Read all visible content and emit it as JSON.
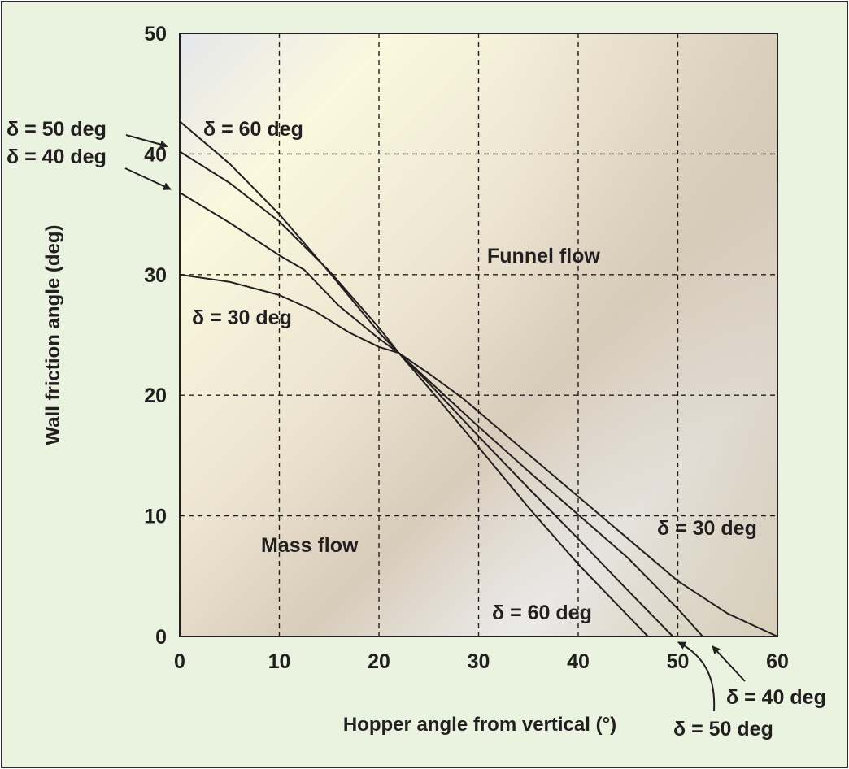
{
  "colors": {
    "background": "#eaf3df",
    "border": "#2a2a2a",
    "line": "#231f20",
    "text": "#231f20"
  },
  "chart_data": {
    "type": "line",
    "title": "",
    "xlabel": "Hopper angle from vertical (°)",
    "ylabel": "Wall friction angle (deg)",
    "xlim": [
      0,
      60
    ],
    "ylim": [
      0,
      50
    ],
    "x_ticks": [
      0,
      10,
      20,
      30,
      40,
      50,
      60
    ],
    "y_ticks": [
      0,
      10,
      20,
      30,
      40,
      50
    ],
    "grid": "dashed",
    "series": [
      {
        "name": "δ = 30 deg",
        "x": [
          0,
          5,
          10,
          13.5,
          17,
          20,
          22,
          25,
          28.5,
          35,
          40,
          45,
          50,
          55,
          60
        ],
        "y": [
          30,
          29.4,
          28.3,
          27,
          25.2,
          24,
          23.5,
          21.8,
          19.7,
          15.1,
          11.6,
          8.1,
          4.6,
          1.9,
          0
        ]
      },
      {
        "name": "δ = 40 deg",
        "x": [
          0,
          5,
          10,
          12.5,
          16,
          20,
          22,
          25,
          30,
          35,
          40,
          45,
          50,
          52.5
        ],
        "y": [
          36.8,
          34.3,
          31.6,
          30.4,
          27.4,
          24.7,
          23.5,
          21.2,
          17.4,
          13.7,
          10.1,
          6.5,
          2.3,
          0
        ]
      },
      {
        "name": "δ = 50 deg",
        "x": [
          0,
          5,
          10,
          15,
          20,
          22,
          25,
          30,
          35,
          40,
          45,
          49.5
        ],
        "y": [
          40.2,
          37.6,
          34.4,
          30.3,
          25.6,
          23.5,
          21,
          16.6,
          12.3,
          8.1,
          3.8,
          0
        ]
      },
      {
        "name": "δ = 60 deg",
        "x": [
          0,
          5,
          10,
          15,
          20,
          22,
          25,
          30,
          35,
          40,
          47
        ],
        "y": [
          42.7,
          39.2,
          35,
          30.2,
          25.2,
          23.5,
          20.6,
          15.7,
          10.7,
          6,
          0
        ]
      }
    ],
    "annotations": {
      "funnel_flow": "Funnel flow",
      "mass_flow": "Mass flow",
      "d50_left": "δ = 50 deg",
      "d40_left": "δ = 40 deg",
      "d60_top": "δ = 60 deg",
      "d30_left": "δ = 30 deg",
      "d30_right": "δ = 30 deg",
      "d60_bottom": "δ = 60 deg",
      "d40_bottom": "δ = 40 deg",
      "d50_bottom": "δ = 50 deg"
    }
  }
}
